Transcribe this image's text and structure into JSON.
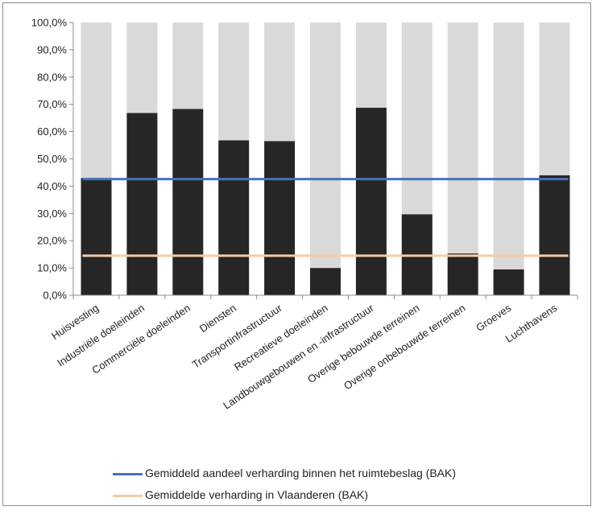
{
  "colors": {
    "share_bar": "#262626",
    "background_bar": "#d9d9d9",
    "avg_share_line": "#4472c4",
    "avg_flanders_line": "#f8cba6",
    "axis": "#8c8c8c"
  },
  "legend": {
    "items": [
      {
        "label": "Gemiddeld aandeel verharding binnen het ruimtebeslag (BAK)",
        "color": "#4472c4"
      },
      {
        "label": "Gemiddelde verharding in Vlaanderen (BAK)",
        "color": "#f8cba6"
      }
    ]
  },
  "chart_data": {
    "type": "bar",
    "stacked": true,
    "categories": [
      "Huisvesting",
      "Industriële doeleinden",
      "Commerciële doeleinden",
      "Diensten",
      "Transportinfrastructuur",
      "Recreatieve doeleinden",
      "Landbouwgebouwen en -infrastructuur",
      "Overige bebouwde terreinen",
      "Overige onbebouwde terreinen",
      "Groeves",
      "Luchthavens"
    ],
    "series": [
      {
        "values": [
          43.0,
          66.8,
          68.3,
          56.8,
          56.5,
          10.0,
          68.8,
          29.7,
          15.3,
          9.5,
          44.0
        ],
        "color": "#262626"
      },
      {
        "values": [
          57.0,
          33.2,
          31.7,
          43.2,
          43.5,
          90.0,
          31.2,
          70.3,
          84.7,
          90.5,
          56.0
        ],
        "color": "#d9d9d9"
      }
    ],
    "lines": [
      {
        "name": "Gemiddeld aandeel verharding binnen het ruimtebeslag (BAK)",
        "value": 42.6,
        "color": "#4472c4"
      },
      {
        "name": "Gemiddelde verharding in Vlaanderen (BAK)",
        "value": 14.5,
        "color": "#f8cba6"
      }
    ],
    "y_ticks": [
      "0,0%",
      "10,0%",
      "20,0%",
      "30,0%",
      "40,0%",
      "50,0%",
      "60,0%",
      "70,0%",
      "80,0%",
      "90,0%",
      "100,0%"
    ],
    "ylim": [
      0,
      100
    ],
    "grid": false,
    "legend_position": "bottom",
    "title": "",
    "xlabel": "",
    "ylabel": ""
  }
}
